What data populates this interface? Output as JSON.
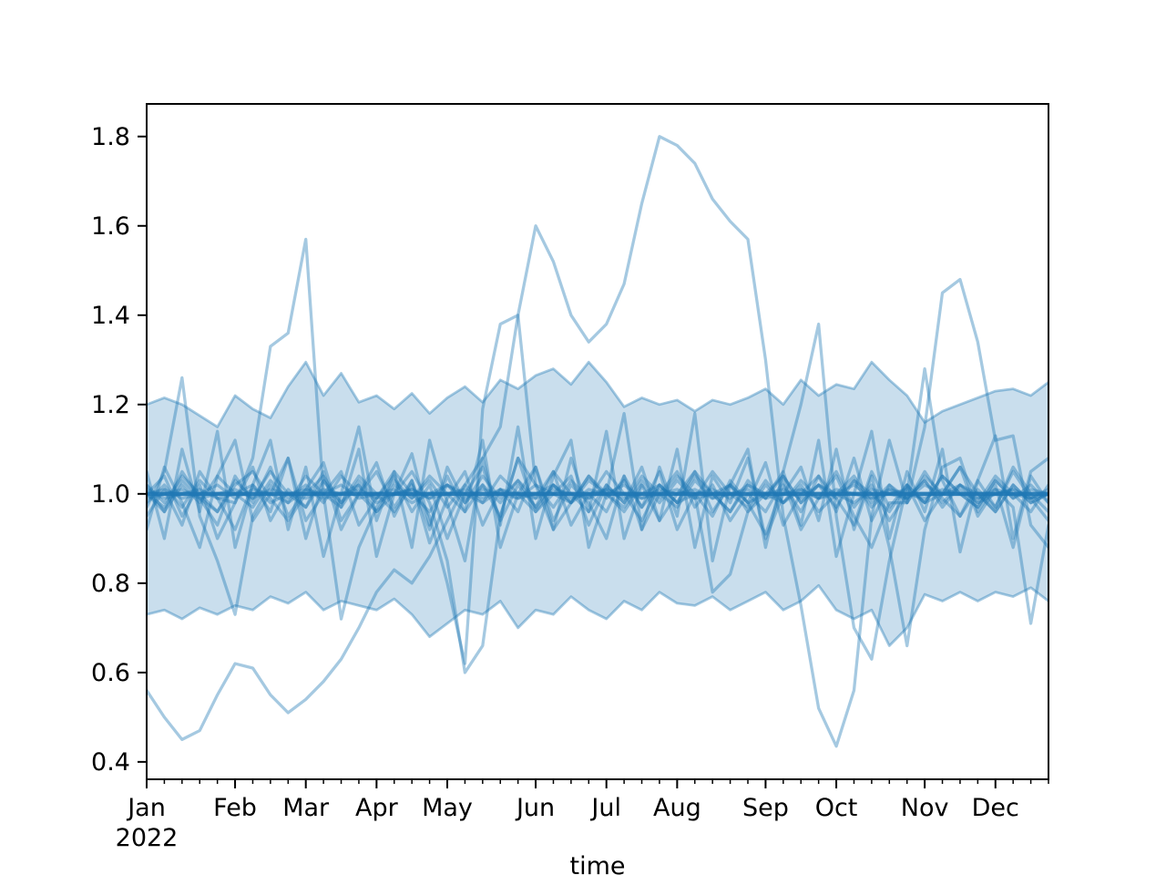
{
  "chart_data": {
    "type": "line",
    "title": "",
    "xlabel": "time",
    "ylabel": "",
    "x_axis": {
      "unit": "weekly periods of 2022",
      "xlim": [
        0,
        51
      ],
      "minor_ticks": {
        "start": 0,
        "end": 51,
        "step": 1
      },
      "year_label": "2022"
    },
    "xticks": [
      {
        "pos": 0,
        "label": "Jan",
        "year": "2022"
      },
      {
        "pos": 5,
        "label": "Feb"
      },
      {
        "pos": 9,
        "label": "Mar"
      },
      {
        "pos": 13,
        "label": "Apr"
      },
      {
        "pos": 17,
        "label": "May"
      },
      {
        "pos": 22,
        "label": "Jun"
      },
      {
        "pos": 26,
        "label": "Jul"
      },
      {
        "pos": 30,
        "label": "Aug"
      },
      {
        "pos": 35,
        "label": "Sep"
      },
      {
        "pos": 39,
        "label": "Oct"
      },
      {
        "pos": 44,
        "label": "Nov"
      },
      {
        "pos": 48,
        "label": "Dec"
      }
    ],
    "ylim": [
      0.361,
      1.873
    ],
    "yticks": [
      {
        "v": 0.4,
        "label": "0.4"
      },
      {
        "v": 0.6,
        "label": "0.6"
      },
      {
        "v": 0.8,
        "label": "0.8"
      },
      {
        "v": 1.0,
        "label": "1.0"
      },
      {
        "v": 1.2,
        "label": "1.2"
      },
      {
        "v": 1.4,
        "label": "1.4"
      },
      {
        "v": 1.6,
        "label": "1.6"
      },
      {
        "v": 1.8,
        "label": "1.8"
      }
    ],
    "grid": false,
    "legend": "none",
    "colors": {
      "line": "#1f77b4",
      "sample_alpha": 0.4,
      "mean_alpha": 0.92,
      "band_alpha": 0.24,
      "band_edge_alpha": 0.4,
      "axis": "#000000",
      "background": "#ffffff"
    },
    "x": [
      0,
      1,
      2,
      3,
      4,
      5,
      6,
      7,
      8,
      9,
      10,
      11,
      12,
      13,
      14,
      15,
      16,
      17,
      18,
      19,
      20,
      21,
      22,
      23,
      24,
      25,
      26,
      27,
      28,
      29,
      30,
      31,
      32,
      33,
      34,
      35,
      36,
      37,
      38,
      39,
      40,
      41,
      42,
      43,
      44,
      45,
      46,
      47,
      48,
      49,
      50,
      51
    ],
    "band": {
      "name": "quantile-band",
      "upper": [
        1.2,
        1.215,
        1.2,
        1.175,
        1.15,
        1.22,
        1.19,
        1.17,
        1.24,
        1.295,
        1.22,
        1.27,
        1.205,
        1.22,
        1.19,
        1.225,
        1.18,
        1.215,
        1.24,
        1.205,
        1.255,
        1.235,
        1.265,
        1.28,
        1.245,
        1.295,
        1.25,
        1.195,
        1.215,
        1.2,
        1.21,
        1.185,
        1.21,
        1.2,
        1.215,
        1.235,
        1.2,
        1.255,
        1.22,
        1.245,
        1.235,
        1.295,
        1.255,
        1.22,
        1.16,
        1.185,
        1.2,
        1.215,
        1.23,
        1.235,
        1.22,
        1.25
      ],
      "lower": [
        0.73,
        0.74,
        0.72,
        0.745,
        0.73,
        0.75,
        0.74,
        0.77,
        0.755,
        0.78,
        0.74,
        0.76,
        0.75,
        0.74,
        0.765,
        0.73,
        0.68,
        0.71,
        0.74,
        0.73,
        0.76,
        0.7,
        0.74,
        0.73,
        0.77,
        0.74,
        0.72,
        0.76,
        0.74,
        0.78,
        0.755,
        0.75,
        0.77,
        0.74,
        0.76,
        0.78,
        0.74,
        0.76,
        0.795,
        0.74,
        0.72,
        0.74,
        0.66,
        0.7,
        0.775,
        0.76,
        0.78,
        0.76,
        0.78,
        0.77,
        0.79,
        0.76
      ]
    },
    "series": [
      {
        "name": "mean",
        "role": "mean",
        "values": [
          1.0,
          1.0,
          1.0,
          1.0,
          1.0,
          1.0,
          1.0,
          1.0,
          1.0,
          1.0,
          1.0,
          1.0,
          1.0,
          1.0,
          1.0,
          1.0,
          1.0,
          1.0,
          1.0,
          1.0,
          1.0,
          1.0,
          1.0,
          1.0,
          1.0,
          1.0,
          1.0,
          1.0,
          1.0,
          1.0,
          1.0,
          1.0,
          1.0,
          1.0,
          1.0,
          1.0,
          1.0,
          1.0,
          1.0,
          1.0,
          1.0,
          1.0,
          1.0,
          1.0,
          1.0,
          1.0,
          1.0,
          1.0,
          1.0,
          1.0,
          1.0,
          1.0
        ]
      },
      {
        "name": "sample-1",
        "role": "sample",
        "values": [
          0.56,
          0.5,
          0.45,
          0.47,
          0.55,
          0.62,
          0.61,
          0.55,
          0.51,
          0.54,
          0.58,
          0.63,
          0.7,
          0.78,
          0.83,
          0.8,
          0.86,
          0.94,
          1.02,
          1.08,
          1.15,
          1.4,
          1.6,
          1.52,
          1.4,
          1.34,
          1.38,
          1.47,
          1.65,
          1.8,
          1.78,
          1.74,
          1.66,
          1.61,
          1.57,
          1.3,
          0.95,
          0.75,
          0.52,
          0.435,
          0.56,
          0.95,
          1.12,
          0.98,
          1.04,
          1.0,
          1.06,
          1.0,
          0.96,
          1.02,
          0.98,
          1.0
        ]
      },
      {
        "name": "sample-2",
        "role": "sample",
        "values": [
          1.0,
          0.97,
          1.03,
          0.99,
          0.96,
          1.02,
          1.05,
          0.99,
          0.94,
          1.0,
          1.04,
          0.98,
          1.02,
          0.96,
          1.0,
          1.05,
          0.98,
          0.85,
          0.6,
          0.66,
          0.95,
          1.08,
          1.02,
          0.97,
          1.03,
          0.99,
          1.05,
          1.0,
          0.94,
          1.02,
          0.98,
          1.04,
          1.0,
          0.96,
          1.02,
          0.99,
          1.05,
          1.2,
          1.38,
          0.95,
          0.7,
          0.63,
          0.85,
          1.02,
          0.98,
          1.04,
          1.0,
          0.97,
          1.03,
          0.99,
          1.02,
          0.98
        ]
      },
      {
        "name": "sample-3",
        "role": "sample",
        "values": [
          1.02,
          0.98,
          1.04,
          1.0,
          0.96,
          1.03,
          0.99,
          1.05,
          1.0,
          0.97,
          1.03,
          0.98,
          1.04,
          1.0,
          0.96,
          1.02,
          0.95,
          0.8,
          0.62,
          1.19,
          1.38,
          1.4,
          1.02,
          0.92,
          0.98,
          1.04,
          0.99,
          1.03,
          0.97,
          1.02,
          0.98,
          1.05,
          1.0,
          0.96,
          1.03,
          0.99,
          1.04,
          0.98,
          1.02,
          0.97,
          1.03,
          1.0,
          0.96,
          1.02,
          0.98,
          1.04,
          1.0,
          0.97,
          1.03,
          0.99,
          1.01,
          1.0
        ]
      },
      {
        "name": "sample-4",
        "role": "sample",
        "values": [
          0.98,
          1.02,
          0.97,
          1.03,
          0.99,
          0.98,
          1.08,
          1.33,
          1.36,
          1.57,
          1.0,
          0.72,
          0.88,
          0.97,
          1.03,
          0.99,
          1.04,
          1.0,
          0.96,
          1.02,
          0.98,
          1.03,
          0.99,
          1.05,
          1.0,
          0.96,
          1.02,
          0.98,
          1.04,
          1.0,
          0.97,
          1.03,
          0.99,
          1.02,
          0.96,
          1.0,
          1.04,
          0.98,
          1.02,
          0.99,
          1.03,
          0.97,
          1.01,
          0.99,
          1.03,
          0.98,
          1.02,
          1.0,
          0.96,
          1.02,
          0.98,
          1.0
        ]
      },
      {
        "name": "sample-5",
        "role": "sample",
        "values": [
          1.0,
          0.96,
          1.02,
          0.98,
          1.04,
          1.0,
          0.97,
          1.03,
          0.99,
          1.02,
          0.98,
          1.04,
          1.0,
          0.96,
          1.02,
          0.99,
          1.03,
          0.97,
          1.02,
          0.98,
          1.04,
          1.0,
          0.96,
          1.02,
          0.98,
          1.03,
          1.0,
          0.97,
          1.03,
          0.99,
          1.04,
          1.0,
          0.78,
          0.82,
          0.96,
          1.02,
          0.98,
          1.03,
          0.99,
          1.04,
          0.95,
          0.88,
          0.98,
          0.98,
          1.15,
          1.45,
          1.48,
          1.34,
          1.12,
          1.13,
          0.93,
          0.88
        ]
      },
      {
        "name": "sample-6",
        "role": "sample",
        "values": [
          0.97,
          1.05,
          1.26,
          0.95,
          0.85,
          0.73,
          0.95,
          1.02,
          0.98,
          1.04,
          1.0,
          0.97,
          1.03,
          0.99,
          1.05,
          1.0,
          0.96,
          1.02,
          0.98,
          1.04,
          0.99,
          1.03,
          0.97,
          1.02,
          0.98,
          1.04,
          1.0,
          0.96,
          1.02,
          0.98,
          1.03,
          0.99,
          1.05,
          1.0,
          0.97,
          1.03,
          0.98,
          1.02,
          0.96,
          1.0,
          1.04,
          0.98,
          1.02,
          0.99,
          1.03,
          0.97,
          1.02,
          0.98,
          1.04,
          1.0,
          0.96,
          1.02
        ]
      },
      {
        "name": "sample-7",
        "role": "sample",
        "values": [
          1.0,
          1.04,
          0.95,
          1.02,
          0.9,
          0.98,
          1.06,
          0.94,
          1.01,
          0.97,
          1.05,
          0.92,
          1.0,
          1.07,
          0.95,
          1.03,
          0.89,
          0.99,
          1.05,
          0.93,
          1.01,
          0.96,
          1.06,
          0.94,
          1.02,
          0.98,
          0.9,
          1.04,
          0.97,
          1.05,
          0.92,
          1.0,
          0.95,
          1.03,
          0.98,
          0.91,
          1.02,
          0.96,
          1.04,
          0.99,
          0.93,
          1.05,
          0.97,
          1.02,
          0.94,
          1.0,
          1.06,
          0.95,
          1.01,
          0.97,
          0.71,
          0.93
        ]
      },
      {
        "name": "sample-8",
        "role": "sample",
        "values": [
          0.95,
          1.01,
          0.93,
          1.05,
          0.99,
          0.92,
          1.02,
          0.96,
          1.08,
          0.94,
          1.0,
          1.05,
          0.93,
          0.99,
          1.04,
          0.96,
          1.02,
          0.9,
          1.0,
          1.06,
          0.94,
          1.02,
          0.97,
          1.05,
          0.93,
          1.0,
          0.96,
          1.04,
          0.92,
          1.0,
          1.05,
          0.97,
          1.02,
          0.94,
          1.0,
          0.96,
          1.03,
          0.92,
          0.99,
          1.05,
          0.97,
          1.02,
          0.94,
          1.0,
          1.28,
          1.03,
          0.95,
          1.01,
          0.97,
          1.05,
          0.99,
          0.94
        ]
      },
      {
        "name": "sample-9",
        "role": "sample",
        "values": [
          1.05,
          0.9,
          1.1,
          0.96,
          1.14,
          0.88,
          1.02,
          1.12,
          0.92,
          1.06,
          0.86,
          1.0,
          1.15,
          0.94,
          1.05,
          0.88,
          1.12,
          0.98,
          0.85,
          1.08,
          0.93,
          1.15,
          0.9,
          1.04,
          1.12,
          0.88,
          1.0,
          1.18,
          0.92,
          1.06,
          0.95,
          1.18,
          0.85,
          1.02,
          1.1,
          0.88,
          1.05,
          0.93,
          1.12,
          0.86,
          1.0,
          1.14,
          0.9,
          1.05,
          0.96,
          1.1,
          0.87,
          1.03,
          1.13,
          0.9,
          1.05,
          1.08
        ]
      },
      {
        "name": "sample-10",
        "role": "sample",
        "values": [
          0.92,
          1.06,
          0.98,
          0.88,
          1.04,
          1.12,
          0.94,
          1.0,
          1.08,
          0.9,
          1.03,
          0.97,
          1.1,
          0.86,
          1.0,
          1.09,
          0.93,
          1.04,
          0.96,
          1.12,
          0.88,
          1.0,
          1.06,
          0.92,
          1.08,
          0.96,
          1.14,
          0.9,
          1.02,
          0.94,
          1.1,
          0.88,
          1.04,
          0.98,
          1.08,
          0.9,
          1.0,
          1.06,
          0.94,
          1.1,
          0.92,
          1.04,
          0.88,
          0.66,
          0.92,
          1.06,
          1.08,
          0.96,
          1.02,
          0.88,
          1.04,
          0.98
        ]
      },
      {
        "name": "sample-11",
        "role": "sample",
        "values": [
          1.02,
          0.96,
          1.05,
          0.99,
          0.93,
          1.04,
          0.98,
          1.06,
          0.95,
          1.01,
          1.07,
          0.94,
          1.0,
          1.05,
          0.97,
          1.03,
          0.92,
          1.06,
          0.98,
          1.02,
          0.95,
          1.08,
          0.96,
          1.0,
          1.04,
          0.93,
          1.02,
          0.98,
          1.06,
          0.94,
          1.0,
          1.05,
          0.96,
          1.02,
          0.98,
          1.07,
          0.93,
          1.0,
          1.04,
          0.96,
          1.08,
          0.94,
          1.02,
          0.98,
          1.05,
          0.99,
          0.95,
          1.03,
          0.97,
          1.06,
          1.0,
          0.96
        ]
      },
      {
        "name": "sample-12",
        "role": "sample",
        "values": [
          1.0,
          1.01,
          0.99,
          1.0,
          1.02,
          0.99,
          1.01,
          1.0,
          0.98,
          1.01,
          1.0,
          1.02,
          0.99,
          1.0,
          1.01,
          0.98,
          1.0,
          1.02,
          0.99,
          1.01,
          1.0,
          0.99,
          1.02,
          1.0,
          0.98,
          1.01,
          1.0,
          1.02,
          0.99,
          1.0,
          1.01,
          0.99,
          1.0,
          1.02,
          0.98,
          1.0,
          1.01,
          0.99,
          1.02,
          1.0,
          0.98,
          1.01,
          1.0,
          0.99,
          1.02,
          1.0,
          1.01,
          0.98,
          1.0,
          1.01,
          0.99,
          1.0
        ]
      },
      {
        "name": "sample-13",
        "role": "sample",
        "values": [
          0.99,
          1.0,
          1.01,
          0.99,
          1.0,
          1.01,
          0.99,
          1.01,
          1.0,
          0.99,
          1.01,
          1.0,
          1.01,
          0.99,
          1.0,
          1.01,
          0.99,
          1.0,
          1.01,
          0.99,
          1.01,
          1.0,
          0.99,
          1.01,
          1.0,
          0.99,
          1.01,
          1.0,
          0.99,
          1.01,
          1.0,
          1.01,
          0.99,
          1.0,
          1.01,
          0.99,
          1.0,
          1.01,
          0.99,
          1.01,
          1.0,
          0.99,
          1.01,
          1.0,
          0.99,
          1.01,
          1.0,
          0.99,
          1.01,
          1.0,
          0.99,
          1.01
        ]
      },
      {
        "name": "sample-14",
        "role": "sample",
        "values": [
          1.01,
          0.99,
          1.0,
          1.01,
          0.99,
          1.0,
          1.02,
          0.98,
          1.0,
          1.01,
          0.99,
          1.0,
          1.02,
          0.98,
          1.0,
          1.01,
          0.99,
          1.02,
          1.0,
          0.98,
          1.01,
          0.99,
          1.0,
          1.02,
          0.99,
          1.0,
          1.01,
          0.99,
          1.0,
          1.02,
          0.98,
          1.0,
          1.01,
          0.99,
          1.02,
          1.0,
          0.98,
          1.01,
          0.99,
          1.0,
          1.02,
          0.99,
          1.0,
          1.01,
          0.98,
          1.0,
          1.02,
          0.99,
          1.0,
          1.01,
          0.99,
          1.0
        ]
      }
    ]
  }
}
